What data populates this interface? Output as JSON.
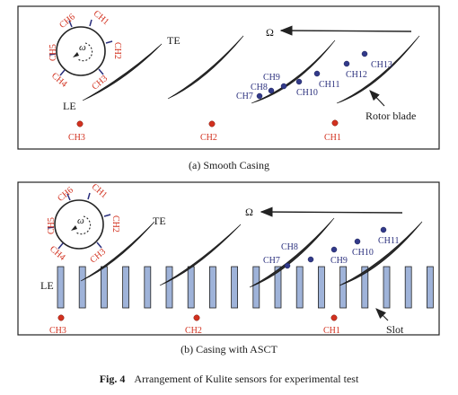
{
  "colors": {
    "sensor_red": "#d2311f",
    "sensor_blue": "#323a8a",
    "slot_fill": "#9fb3d9",
    "blade": "#222222"
  },
  "panel_a": {
    "caption": "(a) Smooth Casing",
    "omega": "Ω",
    "te": "TE",
    "le": "LE",
    "rotor_blade": "Rotor blade",
    "dial": {
      "omega": "ω",
      "channels": [
        "CH1",
        "CH2",
        "CH3",
        "CH4",
        "CH5",
        "CH6"
      ]
    },
    "red_sensors": [
      "CH3",
      "CH2",
      "CH1"
    ],
    "blue_sensors": [
      "CH7",
      "CH8",
      "CH9",
      "CH10",
      "CH11",
      "CH12",
      "CH13"
    ]
  },
  "panel_b": {
    "caption": "(b) Casing with ASCT",
    "omega": "Ω",
    "te": "TE",
    "le": "LE",
    "slot": "Slot",
    "dial": {
      "omega": "ω",
      "channels": [
        "CH1",
        "CH2",
        "CH3",
        "CH4",
        "CH5",
        "CH6"
      ]
    },
    "red_sensors": [
      "CH3",
      "CH2",
      "CH1"
    ],
    "blue_sensors": [
      "CH7",
      "CH8",
      "CH9",
      "CH10",
      "CH11"
    ]
  },
  "figure": {
    "label": "Fig. 4",
    "title": "Arrangement of Kulite sensors for experimental test"
  }
}
